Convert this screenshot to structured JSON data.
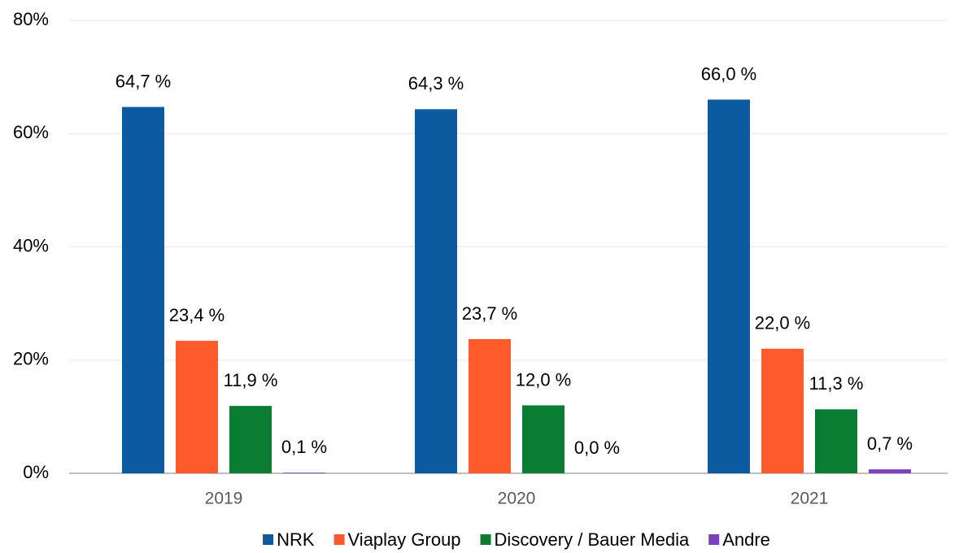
{
  "chart_data": {
    "type": "bar",
    "categories": [
      "2019",
      "2020",
      "2021"
    ],
    "series": [
      {
        "name": "NRK",
        "color": "#0c5aa0",
        "values": [
          64.7,
          64.3,
          66.0
        ],
        "value_labels": [
          "64,7 %",
          "64,3 %",
          "66,0 %"
        ]
      },
      {
        "name": "Viaplay Group",
        "color": "#ff5a2b",
        "values": [
          23.4,
          23.7,
          22.0
        ],
        "value_labels": [
          "23,4 %",
          "23,7 %",
          "22,0 %"
        ]
      },
      {
        "name": "Discovery / Bauer Media",
        "color": "#0a7d32",
        "values": [
          11.9,
          12.0,
          11.3
        ],
        "value_labels": [
          "11,9 %",
          "12,0 %",
          "11,3 %"
        ]
      },
      {
        "name": "Andre",
        "color": "#7e3fbf",
        "values": [
          0.1,
          0.0,
          0.7
        ],
        "value_labels": [
          "0,1 %",
          "0,0 %",
          "0,7 %"
        ]
      }
    ],
    "ylim": [
      0,
      80
    ],
    "yticks": [
      {
        "value": 0,
        "label": "0%"
      },
      {
        "value": 20,
        "label": "20%"
      },
      {
        "value": 40,
        "label": "40%"
      },
      {
        "value": 60,
        "label": "60%"
      },
      {
        "value": 80,
        "label": "80%"
      }
    ],
    "grid": true,
    "legend": "bottom"
  }
}
